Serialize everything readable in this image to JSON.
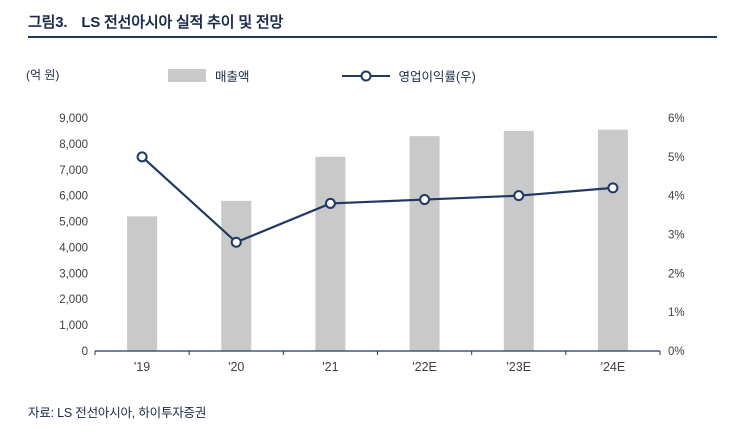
{
  "figure": {
    "label": "그림3.",
    "title": "LS 전선아시아 실적 추이 및 전망"
  },
  "unit_label": "(억 원)",
  "legend": {
    "bar_label": "매출액",
    "line_label": "영업이익률(우)"
  },
  "source": "자료: LS 전선아시아, 하이투자증권",
  "colors": {
    "bar": "#c9c9c9",
    "line": "#1f3864",
    "axis_text": "#404040",
    "axis_line": "#1f3864"
  },
  "chart_data": {
    "type": "bar",
    "subtype": "bar+line-combo",
    "categories": [
      "'19",
      "'20",
      "'21",
      "'22E",
      "'23E",
      "'24E"
    ],
    "series": [
      {
        "name": "매출액",
        "type": "bar",
        "axis": "left",
        "values": [
          5200,
          5800,
          7500,
          8300,
          8500,
          8550
        ]
      },
      {
        "name": "영업이익률(우)",
        "type": "line",
        "axis": "right",
        "values": [
          5.0,
          2.8,
          3.8,
          3.9,
          4.0,
          4.2
        ]
      }
    ],
    "left_axis": {
      "label": "(억 원)",
      "min": 0,
      "max": 9000,
      "step": 1000,
      "tick_labels": [
        "0",
        "1,000",
        "2,000",
        "3,000",
        "4,000",
        "5,000",
        "6,000",
        "7,000",
        "8,000",
        "9,000"
      ]
    },
    "right_axis": {
      "min": 0,
      "max": 6,
      "step": 1,
      "tick_labels": [
        "0%",
        "1%",
        "2%",
        "3%",
        "4%",
        "5%",
        "6%"
      ]
    },
    "grid": false,
    "legend_position": "top"
  }
}
